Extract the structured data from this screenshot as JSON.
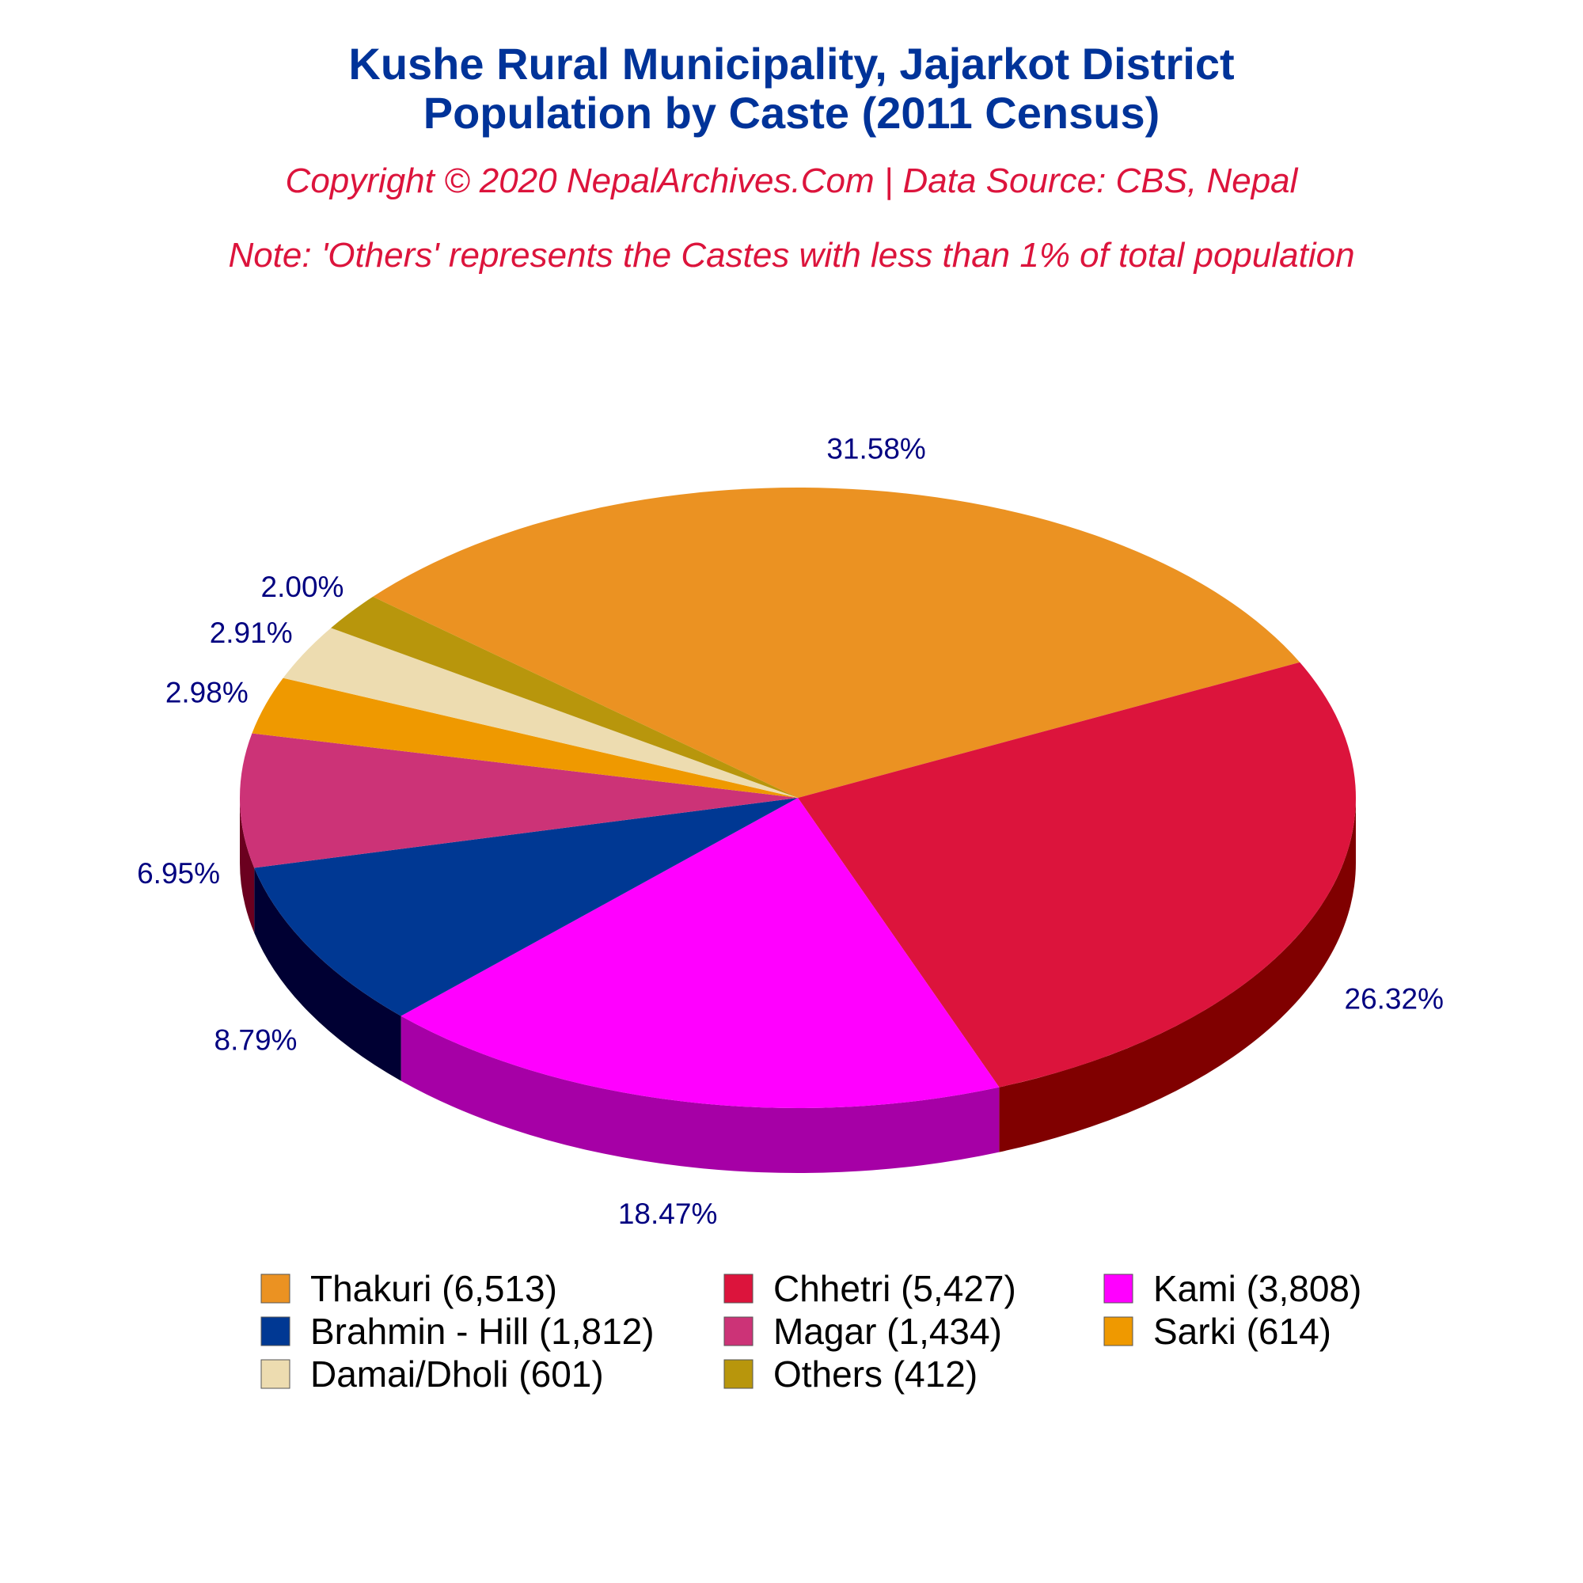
{
  "title_line1": "Kushe Rural Municipality, Jajarkot District",
  "title_line2": "Population by Caste (2011 Census)",
  "copyright": "Copyright © 2020 NepalArchives.Com | Data Source: CBS, Nepal",
  "note": "Note: 'Others' represents the Castes with less than 1% of total population",
  "chart_data": {
    "type": "pie",
    "style": "3d",
    "legend_position": "bottom",
    "slices": [
      {
        "label": "Thakuri (6,513)",
        "value": 6513,
        "percent_label": "31.58%",
        "color": "#eb9222",
        "side_color": "#9c5b0e"
      },
      {
        "label": "Chhetri (5,427)",
        "value": 5427,
        "percent_label": "26.32%",
        "color": "#dc143c",
        "side_color": "#800000"
      },
      {
        "label": "Kami (3,808)",
        "value": 3808,
        "percent_label": "18.47%",
        "color": "#ff00ff",
        "side_color": "#a600a6"
      },
      {
        "label": "Brahmin - Hill (1,812)",
        "value": 1812,
        "percent_label": "8.79%",
        "color": "#003893",
        "side_color": "#000033"
      },
      {
        "label": "Magar (1,434)",
        "value": 1434,
        "percent_label": "6.95%",
        "color": "#cc3377",
        "side_color": "#6b001f"
      },
      {
        "label": "Sarki (614)",
        "value": 614,
        "percent_label": "2.98%",
        "color": "#ef9900",
        "side_color": "#8a5700"
      },
      {
        "label": "Damai/Dholi (601)",
        "value": 601,
        "percent_label": "2.91%",
        "color": "#eddcb0",
        "side_color": "#a89878"
      },
      {
        "label": "Others (412)",
        "value": 412,
        "percent_label": "2.00%",
        "color": "#b8960c",
        "side_color": "#6b5706"
      }
    ]
  }
}
